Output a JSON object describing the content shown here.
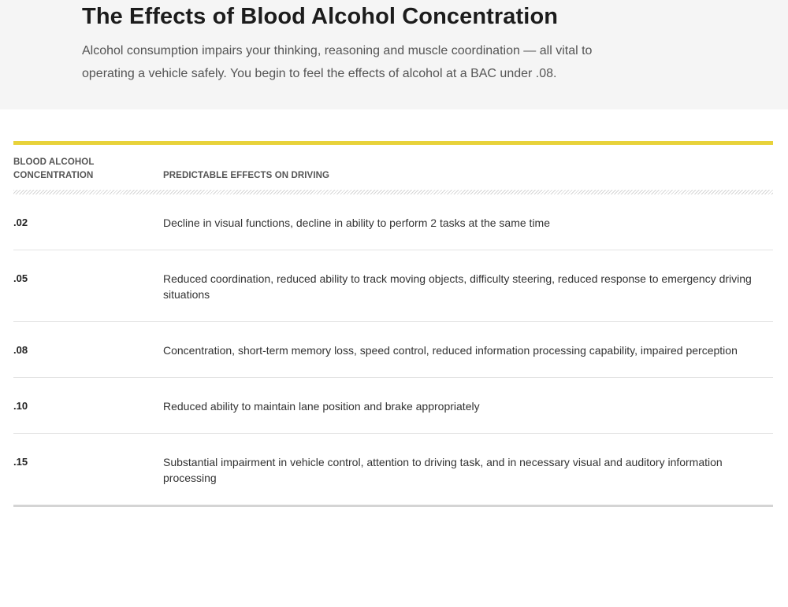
{
  "hero": {
    "title": "The Effects of Blood Alcohol Concentration",
    "intro": "Alcohol consumption impairs your thinking, reasoning and muscle coordination — all vital to operating a vehicle safely. You begin to feel the effects of alcohol at a BAC under .08."
  },
  "table": {
    "headers": {
      "bac": "BLOOD ALCOHOL CONCENTRATION",
      "effects": "PREDICTABLE EFFECTS ON DRIVING"
    },
    "rows": [
      {
        "bac": ".02",
        "effect": "Decline in visual functions, decline in ability to perform 2 tasks at the same time"
      },
      {
        "bac": ".05",
        "effect": "Reduced coordination, reduced ability to track moving objects, difficulty steering, reduced response to emergency driving situations"
      },
      {
        "bac": ".08",
        "effect": "Concentration, short-term memory loss, speed control, reduced information processing capability, impaired perception"
      },
      {
        "bac": ".10",
        "effect": "Reduced ability to maintain lane position and brake appropriately"
      },
      {
        "bac": ".15",
        "effect": "Substantial impairment in vehicle control, attention to driving task, and in necessary visual and auditory information processing"
      }
    ]
  },
  "colors": {
    "accent_rule": "#e8d23a",
    "hero_background": "#f5f5f5",
    "bottom_rule": "#d4d4d4"
  }
}
